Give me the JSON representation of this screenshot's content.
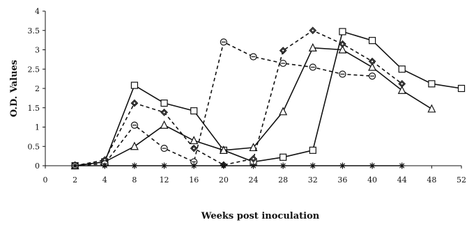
{
  "chart_data": {
    "type": "line",
    "title": "",
    "xlabel": "Weeks post inoculation",
    "ylabel": "O.D. Values",
    "x_ticks": [
      0,
      2,
      4,
      8,
      12,
      16,
      20,
      24,
      28,
      32,
      36,
      40,
      44,
      48,
      52
    ],
    "y_ticks": [
      "0",
      "0.5",
      "1",
      "1.5",
      "2",
      "2.5",
      "3",
      "3.5",
      "4"
    ],
    "ylim": [
      0,
      4
    ],
    "grid": false,
    "legend": "none",
    "series": [
      {
        "marker": "square",
        "style": "solid",
        "x": [
          2,
          4,
          8,
          12,
          16,
          20,
          24,
          28,
          32,
          36,
          40,
          44,
          48,
          52
        ],
        "values": [
          0,
          0.1,
          2.08,
          1.62,
          1.42,
          0.4,
          0.1,
          0.22,
          0.4,
          3.47,
          3.24,
          2.5,
          2.12,
          2.0
        ]
      },
      {
        "marker": "triangle",
        "style": "solid",
        "x": [
          2,
          4,
          8,
          12,
          16,
          20,
          24,
          28,
          32,
          36,
          40,
          44,
          48
        ],
        "values": [
          0,
          0.1,
          0.5,
          1.05,
          0.65,
          0.4,
          0.47,
          1.4,
          3.05,
          3.0,
          2.55,
          1.95,
          1.47
        ]
      },
      {
        "marker": "diamond",
        "style": "dashed",
        "x": [
          2,
          4,
          8,
          12,
          16,
          20,
          24,
          28,
          32,
          36,
          40,
          44
        ],
        "values": [
          0,
          0.15,
          1.62,
          1.38,
          0.45,
          0.02,
          0.18,
          2.98,
          3.5,
          3.15,
          2.7,
          2.12
        ]
      },
      {
        "marker": "circle",
        "style": "dashed",
        "x": [
          2,
          4,
          8,
          12,
          16,
          20,
          24,
          28,
          32,
          36,
          40
        ],
        "values": [
          0,
          0.05,
          1.05,
          0.45,
          0.1,
          3.2,
          2.82,
          2.65,
          2.55,
          2.37,
          2.32
        ]
      },
      {
        "marker": "star",
        "style": "solid",
        "x": [
          2,
          4,
          8,
          12,
          16,
          20,
          24,
          28,
          32,
          36,
          40,
          44
        ],
        "values": [
          0,
          0,
          0,
          0,
          0,
          0,
          0,
          0,
          0,
          0,
          0,
          0
        ]
      }
    ]
  }
}
